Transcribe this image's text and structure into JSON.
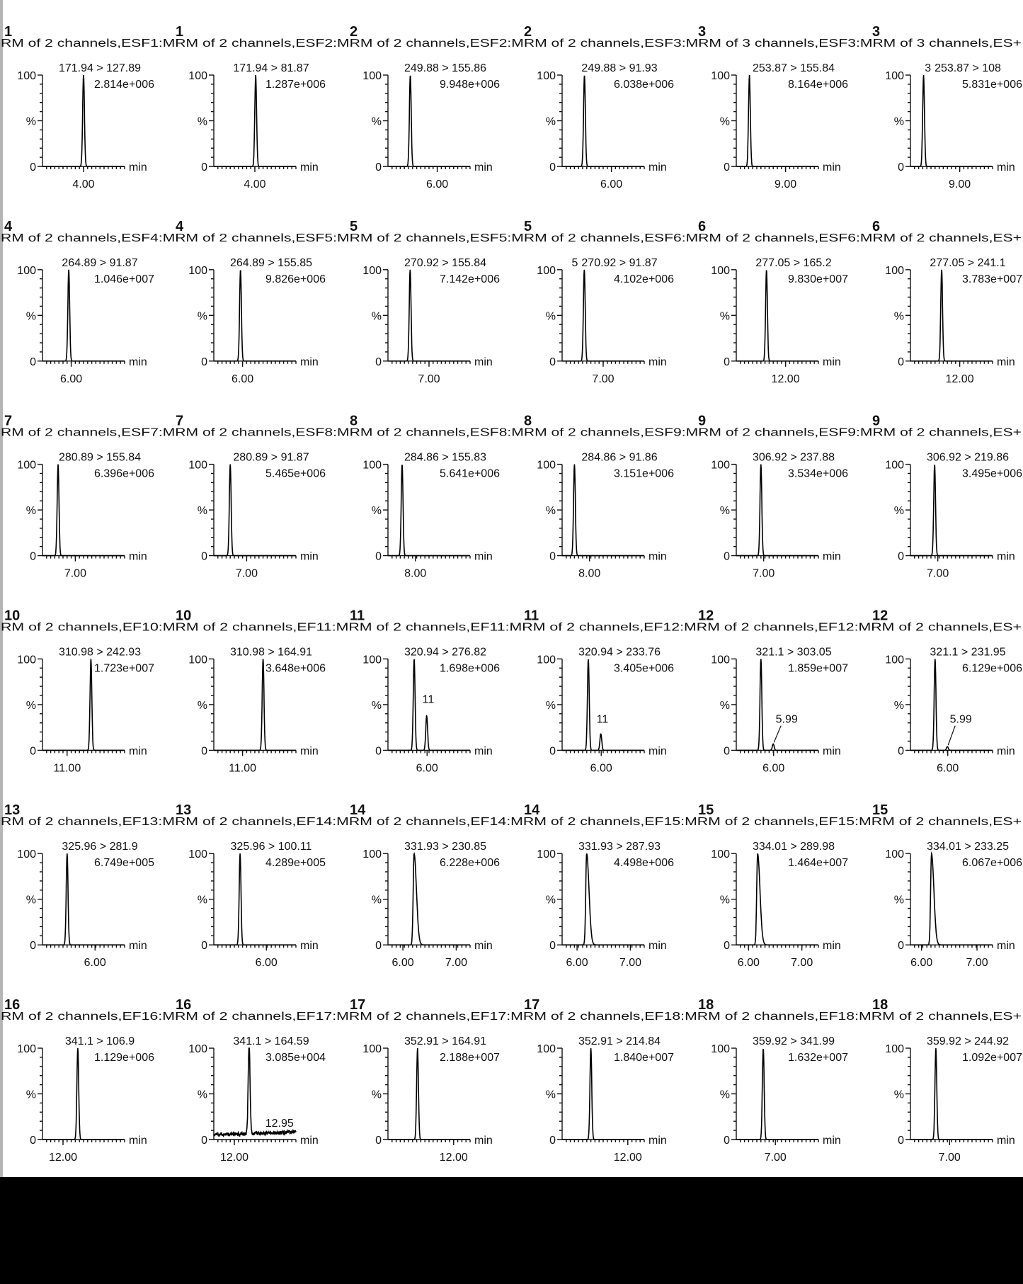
{
  "chart_data": {
    "type": "line",
    "grid": false,
    "y_axis_labels": {
      "top": "100",
      "mid": "%",
      "bottom": "0"
    },
    "x_unit": "min",
    "rows": [
      {
        "header": "RM of 2 channels,ESF1:MRM of 2 channels,ESF2:MRM of 2 channels,ESF2:MRM of 2 channels,ESF3:MRM of 3 channels,ESF3:MRM of 3 channels,ES+"
      },
      {
        "header": "RM of 2 channels,ESF4:MRM of 2 channels,ESF5:MRM of 2 channels,ESF5:MRM of 2 channels,ESF6:MRM of 2 channels,ESF6:MRM of 2 channels,ES+"
      },
      {
        "header": "RM of 2 channels,ESF7:MRM of 2 channels,ESF8:MRM of 2 channels,ESF8:MRM of 2 channels,ESF9:MRM of 2 channels,ESF9:MRM of 2 channels,ES+"
      },
      {
        "header": "RM of 2 channels,EF10:MRM of 2 channels,EF11:MRM of 2 channels,EF11:MRM of 2 channels,EF12:MRM of 2 channels,EF12:MRM of 2 channels,ES+"
      },
      {
        "header": "RM of 2 channels,EF13:MRM of 2 channels,EF14:MRM of 2 channels,EF14:MRM of 2 channels,EF15:MRM of 2 channels,EF15:MRM of 2 channels,ES+"
      },
      {
        "header": "RM of 2 channels,EF16:MRM of 2 channels,EF17:MRM of 2 channels,EF17:MRM of 2 channels,EF18:MRM of 2 channels,EF18:MRM of 2 channels,ES+"
      }
    ],
    "panels": [
      {
        "number": "1",
        "transition": "171.94 > 127.89",
        "intensity": "2.814e+006",
        "xlim": [
          3.0,
          5.0
        ],
        "ticks": [
          "4.00"
        ],
        "peaks": [
          [
            4.0,
            100
          ]
        ]
      },
      {
        "number": "1",
        "transition": "171.94 > 81.87",
        "intensity": "1.287e+006",
        "xlim": [
          3.0,
          5.0
        ],
        "ticks": [
          "4.00"
        ],
        "peaks": [
          [
            4.02,
            100
          ]
        ]
      },
      {
        "number": "2",
        "transition": "249.88 > 155.86",
        "intensity": "9.948e+006",
        "xlim": [
          4.5,
          7.0
        ],
        "ticks": [
          "6.00"
        ],
        "peaks": [
          [
            5.18,
            100
          ]
        ]
      },
      {
        "number": "2",
        "transition": "249.88 > 91.93",
        "intensity": "6.038e+006",
        "xlim": [
          4.5,
          7.0
        ],
        "ticks": [
          "6.00"
        ],
        "peaks": [
          [
            5.18,
            100
          ]
        ]
      },
      {
        "number": "3",
        "transition": "253.87 > 155.84",
        "intensity": "8.164e+006",
        "xlim": [
          7.5,
          10.0
        ],
        "ticks": [
          "9.00"
        ],
        "peaks": [
          [
            7.9,
            100
          ]
        ]
      },
      {
        "number": "3",
        "transition": "253.87 > 108",
        "intensity": "5.831e+006",
        "xlim": [
          7.5,
          10.0
        ],
        "ticks": [
          "9.00"
        ],
        "peaks": [
          [
            7.9,
            100
          ]
        ],
        "labels": [
          {
            "text": "3",
            "rt": 7.9,
            "y": 110
          }
        ]
      },
      {
        "number": "4",
        "transition": "264.89 > 91.87",
        "intensity": "1.046e+007",
        "xlim": [
          5.3,
          7.3
        ],
        "ticks": [
          "6.00"
        ],
        "peaks": [
          [
            5.94,
            100
          ]
        ]
      },
      {
        "number": "4",
        "transition": "264.89 > 155.85",
        "intensity": "9.826e+006",
        "xlim": [
          5.3,
          7.3
        ],
        "ticks": [
          "6.00"
        ],
        "peaks": [
          [
            5.95,
            100
          ]
        ]
      },
      {
        "number": "5",
        "transition": "270.92 > 155.84",
        "intensity": "7.142e+006",
        "xlim": [
          6.0,
          8.0
        ],
        "ticks": [
          "7.00"
        ],
        "peaks": [
          [
            6.54,
            100
          ]
        ]
      },
      {
        "number": "5",
        "transition": "270.92 > 91.87",
        "intensity": "4.102e+006",
        "xlim": [
          6.0,
          8.0
        ],
        "ticks": [
          "7.00"
        ],
        "peaks": [
          [
            6.54,
            100
          ]
        ],
        "labels": [
          {
            "text": "5",
            "rt": 6.54,
            "y": 110
          }
        ]
      },
      {
        "number": "6",
        "transition": "277.05 > 165.2",
        "intensity": "9.830e+007",
        "xlim": [
          10.5,
          13.0
        ],
        "ticks": [
          "12.00"
        ],
        "peaks": [
          [
            11.42,
            100
          ]
        ]
      },
      {
        "number": "6",
        "transition": "277.05 > 241.1",
        "intensity": "3.783e+007",
        "xlim": [
          10.5,
          13.0
        ],
        "ticks": [
          "12.00"
        ],
        "peaks": [
          [
            11.45,
            100
          ]
        ]
      },
      {
        "number": "7",
        "transition": "280.89 > 155.84",
        "intensity": "6.396e+006",
        "xlim": [
          6.2,
          8.2
        ],
        "ticks": [
          "7.00"
        ],
        "peaks": [
          [
            6.58,
            100
          ]
        ]
      },
      {
        "number": "7",
        "transition": "280.89 > 91.87",
        "intensity": "5.465e+006",
        "xlim": [
          6.2,
          8.2
        ],
        "ticks": [
          "7.00"
        ],
        "peaks": [
          [
            6.6,
            100
          ]
        ]
      },
      {
        "number": "8",
        "transition": "284.86 > 155.83",
        "intensity": "5.641e+006",
        "xlim": [
          7.4,
          9.2
        ],
        "ticks": [
          "8.00"
        ],
        "peaks": [
          [
            7.71,
            100
          ]
        ]
      },
      {
        "number": "8",
        "transition": "284.86 > 91.86",
        "intensity": "3.151e+006",
        "xlim": [
          7.4,
          9.2
        ],
        "ticks": [
          "8.00"
        ],
        "peaks": [
          [
            7.67,
            100
          ]
        ]
      },
      {
        "number": "9",
        "transition": "306.92 > 237.88",
        "intensity": "3.534e+006",
        "xlim": [
          6.4,
          8.2
        ],
        "ticks": [
          "7.00"
        ],
        "peaks": [
          [
            6.94,
            100
          ]
        ]
      },
      {
        "number": "9",
        "transition": "306.92 > 219.86",
        "intensity": "3.495e+006",
        "xlim": [
          6.4,
          8.2
        ],
        "ticks": [
          "7.00"
        ],
        "peaks": [
          [
            6.93,
            100
          ]
        ]
      },
      {
        "number": "10",
        "transition": "310.98 > 242.93",
        "intensity": "1.723e+007",
        "xlim": [
          10.4,
          12.4
        ],
        "ticks": [
          "11.00"
        ],
        "peaks": [
          [
            11.58,
            100
          ]
        ]
      },
      {
        "number": "10",
        "transition": "310.98 > 164.91",
        "intensity": "3.648e+006",
        "xlim": [
          10.3,
          12.3
        ],
        "ticks": [
          "11.00"
        ],
        "peaks": [
          [
            11.5,
            100
          ]
        ]
      },
      {
        "number": "11",
        "transition": "320.94 > 276.82",
        "intensity": "1.698e+006",
        "xlim": [
          5.0,
          7.1
        ],
        "ticks": [
          "6.00"
        ],
        "peaks": [
          [
            5.67,
            100
          ],
          [
            5.99,
            38
          ]
        ],
        "labels": [
          {
            "text": "11",
            "rt": 5.99,
            "y": 52
          }
        ]
      },
      {
        "number": "11",
        "transition": "320.94 > 233.76",
        "intensity": "3.405e+006",
        "xlim": [
          5.0,
          7.1
        ],
        "ticks": [
          "6.00"
        ],
        "peaks": [
          [
            5.67,
            100
          ],
          [
            5.99,
            18
          ]
        ],
        "labels": [
          {
            "text": "11",
            "rt": 5.99,
            "y": 30
          }
        ]
      },
      {
        "number": "12",
        "transition": "321.1 > 303.05",
        "intensity": "1.859e+007",
        "xlim": [
          5.0,
          7.2
        ],
        "ticks": [
          "6.00"
        ],
        "peaks": [
          [
            5.66,
            100
          ],
          [
            5.99,
            7
          ]
        ],
        "labels": [
          {
            "text": "5.99",
            "rt": 6.35,
            "y": 30,
            "leader": true
          }
        ]
      },
      {
        "number": "12",
        "transition": "321.1 > 231.95",
        "intensity": "6.129e+006",
        "xlim": [
          5.0,
          7.2
        ],
        "ticks": [
          "6.00"
        ],
        "peaks": [
          [
            5.66,
            100
          ],
          [
            5.99,
            4
          ]
        ],
        "labels": [
          {
            "text": "5.99",
            "rt": 6.35,
            "y": 30,
            "leader": true
          }
        ]
      },
      {
        "number": "13",
        "transition": "325.96 > 281.9",
        "intensity": "6.749e+005",
        "xlim": [
          4.4,
          6.9
        ],
        "ticks": [
          "6.00"
        ],
        "peaks": [
          [
            5.15,
            100
          ]
        ]
      },
      {
        "number": "13",
        "transition": "325.96 > 100.11",
        "intensity": "4.289e+005",
        "xlim": [
          4.4,
          6.9
        ],
        "ticks": [
          "6.00"
        ],
        "peaks": [
          [
            5.2,
            100
          ]
        ]
      },
      {
        "number": "14",
        "transition": "331.93 > 230.85",
        "intensity": "6.228e+006",
        "xlim": [
          5.72,
          7.26
        ],
        "ticks": [
          "6.00",
          "7.00"
        ],
        "peaks": [
          [
            6.21,
            100
          ]
        ],
        "tail": true
      },
      {
        "number": "14",
        "transition": "331.93 > 287.93",
        "intensity": "4.498e+006",
        "xlim": [
          5.72,
          7.26
        ],
        "ticks": [
          "6.00",
          "7.00"
        ],
        "peaks": [
          [
            6.18,
            100
          ]
        ],
        "tail": true
      },
      {
        "number": "15",
        "transition": "334.01 > 289.98",
        "intensity": "1.464e+007",
        "xlim": [
          5.77,
          7.31
        ],
        "ticks": [
          "6.00",
          "7.00"
        ],
        "peaks": [
          [
            6.17,
            100
          ]
        ],
        "tail": true
      },
      {
        "number": "15",
        "transition": "334.01 > 233.25",
        "intensity": "6.067e+006",
        "xlim": [
          5.8,
          7.28
        ],
        "ticks": [
          "6.00",
          "7.00"
        ],
        "peaks": [
          [
            6.18,
            100
          ]
        ],
        "tail": true
      },
      {
        "number": "16",
        "transition": "341.1 > 106.9",
        "intensity": "1.129e+006",
        "xlim": [
          11.5,
          13.5
        ],
        "ticks": [
          "12.00"
        ],
        "peaks": [
          [
            12.36,
            100
          ]
        ]
      },
      {
        "number": "16",
        "transition": "341.1 > 164.59",
        "intensity": "3.085e+004",
        "xlim": [
          11.5,
          13.5
        ],
        "ticks": [
          "12.00"
        ],
        "peaks": [
          [
            12.36,
            100
          ]
        ],
        "noise": true,
        "labels": [
          {
            "text": "12.95",
            "rt": 13.1,
            "y": 14
          }
        ]
      },
      {
        "number": "17",
        "transition": "352.91 > 164.91",
        "intensity": "2.188e+007",
        "xlim": [
          10.4,
          12.4
        ],
        "ticks": [
          "12.00"
        ],
        "peaks": [
          [
            11.12,
            100
          ]
        ]
      },
      {
        "number": "17",
        "transition": "352.91 > 214.84",
        "intensity": "1.840e+007",
        "xlim": [
          10.4,
          12.4
        ],
        "ticks": [
          "12.00"
        ],
        "peaks": [
          [
            11.1,
            100
          ]
        ]
      },
      {
        "number": "18",
        "transition": "359.92 > 341.99",
        "intensity": "1.632e+007",
        "xlim": [
          6.0,
          8.1
        ],
        "ticks": [
          "7.00"
        ],
        "peaks": [
          [
            6.69,
            100
          ]
        ]
      },
      {
        "number": "18",
        "transition": "359.92 > 244.92",
        "intensity": "1.092e+007",
        "xlim": [
          6.0,
          8.1
        ],
        "ticks": [
          "7.00"
        ],
        "peaks": [
          [
            6.65,
            100
          ]
        ]
      }
    ]
  }
}
